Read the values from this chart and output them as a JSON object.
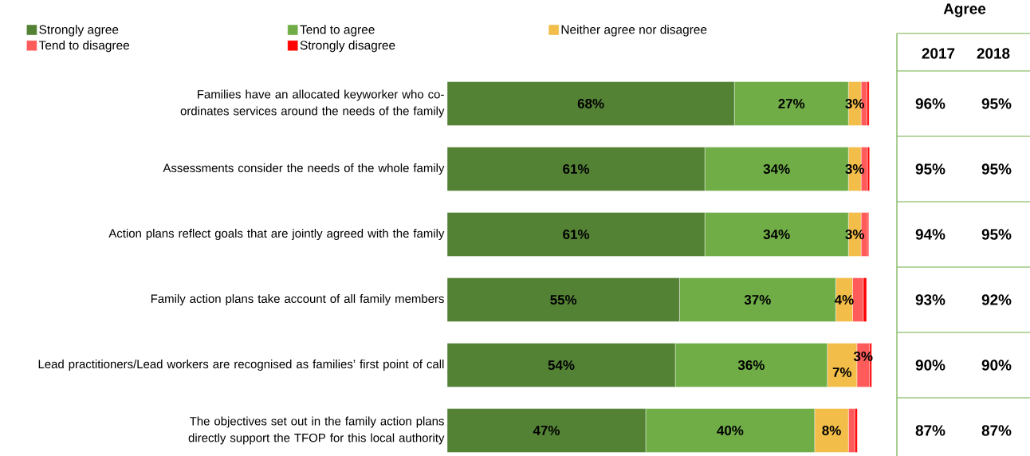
{
  "chart_data": {
    "type": "bar",
    "orientation": "horizontal",
    "stacked": true,
    "legend": "top left",
    "tick_labels": "y",
    "xlim": [
      0,
      101
    ],
    "categories": [
      "Families have an allocated keyworker who co-ordinates services around the needs of the family",
      "Assessments consider the needs of the whole family",
      "Action plans reflect goals that are jointly agreed with the family",
      "Family action plans take account of all family members",
      "Lead practitioners/Lead workers are recognised as families’ first point of call",
      "The objectives set out in the family action plans directly support the TFOP for this local authority"
    ],
    "series": [
      {
        "name": "Strongly agree",
        "color": "#548235",
        "values": [
          68,
          61,
          61,
          55,
          54,
          47
        ],
        "value_labels": [
          "68%",
          "61%",
          "61%",
          "55%",
          "54%",
          "47%"
        ]
      },
      {
        "name": "Tend to agree",
        "color": "#70ad47",
        "values": [
          27,
          34,
          34,
          37,
          36,
          40
        ],
        "value_labels": [
          "27%",
          "34%",
          "34%",
          "37%",
          "36%",
          "40%"
        ]
      },
      {
        "name": "Neither agree nor disagree",
        "color": "#f2bd48",
        "values": [
          3,
          3,
          3,
          4,
          7,
          8
        ],
        "value_labels": [
          "3%",
          "3%",
          "3%",
          "4%",
          "7%",
          "8%"
        ]
      },
      {
        "name": "Tend to disagree",
        "color": "#ff5b5b",
        "values": [
          1.4,
          1.5,
          1.5,
          2.5,
          3,
          1.5
        ],
        "value_labels": [
          null,
          null,
          null,
          null,
          "3%",
          null
        ]
      },
      {
        "name": "Strongly disagree",
        "color": "#ff0000",
        "values": [
          0.5,
          0.5,
          0.3,
          0.8,
          0.5,
          0.6
        ],
        "value_labels": [
          null,
          null,
          null,
          null,
          null,
          null
        ]
      }
    ],
    "annotations": [
      "Agree",
      "2017",
      "2018",
      "96%",
      "95%",
      "95%",
      "95%",
      "94%",
      "95%",
      "93%",
      "92%",
      "90%",
      "90%",
      "87%",
      "87%"
    ]
  }
}
